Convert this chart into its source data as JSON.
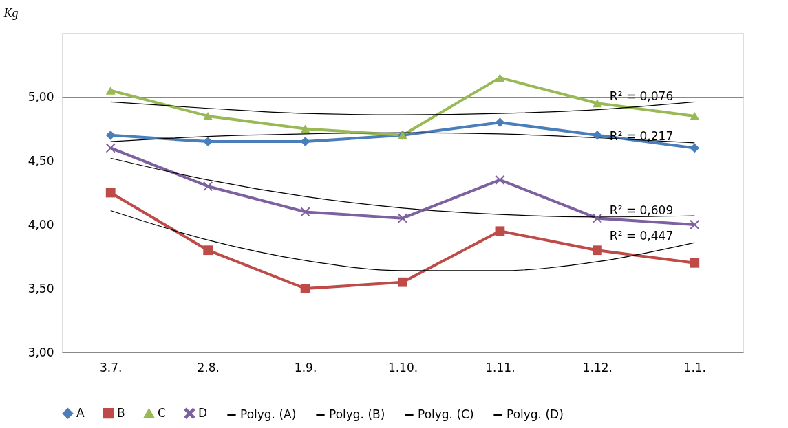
{
  "chart_data": {
    "type": "line",
    "ylabel": "Kg",
    "categories": [
      "3.7.",
      "2.8.",
      "1.9.",
      "1.10.",
      "1.11.",
      "1.12.",
      "1.1."
    ],
    "ylim": [
      3,
      5.5
    ],
    "yticks": [
      {
        "value": 3,
        "label": "3,00"
      },
      {
        "value": 3.5,
        "label": "3,50"
      },
      {
        "value": 4,
        "label": "4,00"
      },
      {
        "value": 4.5,
        "label": "4,50"
      },
      {
        "value": 5,
        "label": "5,00"
      }
    ],
    "grid": "y",
    "legend": "bottom",
    "series": [
      {
        "name": "A",
        "color": "#4a7ebb",
        "marker": "diamond",
        "values": [
          4.7,
          4.65,
          4.65,
          4.7,
          4.8,
          4.7,
          4.6
        ]
      },
      {
        "name": "B",
        "color": "#be4b48",
        "marker": "square",
        "values": [
          4.25,
          3.8,
          3.5,
          3.55,
          3.95,
          3.8,
          3.7
        ]
      },
      {
        "name": "C",
        "color": "#98b954",
        "marker": "triangle",
        "values": [
          5.05,
          4.85,
          4.75,
          4.7,
          5.15,
          4.95,
          4.85
        ]
      },
      {
        "name": "D",
        "color": "#7d60a0",
        "marker": "cross",
        "values": [
          4.6,
          4.3,
          4.1,
          4.05,
          4.35,
          4.05,
          4.0
        ]
      },
      {
        "name": "Polyg. (A)",
        "color": "#000000",
        "marker": "none",
        "values": [
          4.65,
          4.69,
          4.71,
          4.72,
          4.71,
          4.68,
          4.64
        ]
      },
      {
        "name": "Polyg. (B)",
        "color": "#000000",
        "marker": "none",
        "values": [
          4.11,
          3.88,
          3.72,
          3.64,
          3.64,
          3.71,
          3.86
        ]
      },
      {
        "name": "Polyg. (C)",
        "color": "#000000",
        "marker": "none",
        "values": [
          4.96,
          4.91,
          4.87,
          4.86,
          4.87,
          4.9,
          4.96
        ]
      },
      {
        "name": "Polyg. (D)",
        "color": "#000000",
        "marker": "none",
        "values": [
          4.52,
          4.35,
          4.22,
          4.13,
          4.08,
          4.06,
          4.07
        ]
      }
    ],
    "annotations": [
      {
        "text": "R² = 0,076",
        "x": "1.12.",
        "y": 4.95
      },
      {
        "text": "R² = 0,217",
        "x": "1.12.",
        "y": 4.64
      },
      {
        "text": "R² = 0,609",
        "x": "1.12.",
        "y": 4.06
      },
      {
        "text": "R² = 0,447",
        "x": "1.12.",
        "y": 3.86
      }
    ]
  }
}
